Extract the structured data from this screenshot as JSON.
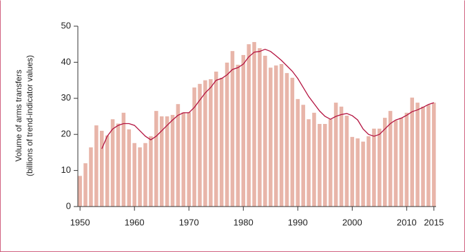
{
  "chart_data": {
    "type": "bar",
    "ylabel": [
      "Volume of arms transfers",
      "(billions of trend-indicator values)"
    ],
    "x": [
      1950,
      1951,
      1952,
      1953,
      1954,
      1955,
      1956,
      1957,
      1958,
      1959,
      1960,
      1961,
      1962,
      1963,
      1964,
      1965,
      1966,
      1967,
      1968,
      1969,
      1970,
      1971,
      1972,
      1973,
      1974,
      1975,
      1976,
      1977,
      1978,
      1979,
      1980,
      1981,
      1982,
      1983,
      1984,
      1985,
      1986,
      1987,
      1988,
      1989,
      1990,
      1991,
      1992,
      1993,
      1994,
      1995,
      1996,
      1997,
      1998,
      1999,
      2000,
      2001,
      2002,
      2003,
      2004,
      2005,
      2006,
      2007,
      2008,
      2009,
      2010,
      2011,
      2012,
      2013,
      2014,
      2015
    ],
    "series": [
      {
        "type": "bar",
        "color": "#e8b5a9",
        "values": [
          8.5,
          12,
          16.4,
          22.5,
          21,
          19.7,
          24.2,
          23,
          26,
          21.4,
          17.6,
          16.4,
          17.6,
          19.5,
          26.5,
          25,
          25,
          25.4,
          28.4,
          26.1,
          26.1,
          33,
          34,
          35,
          35.3,
          37.4,
          35.7,
          39.9,
          43.1,
          39.3,
          42,
          45,
          45.6,
          43.9,
          41.8,
          38.5,
          39.1,
          39.5,
          37,
          35.7,
          29.8,
          28.2,
          24.2,
          26,
          22.9,
          22.9,
          24.2,
          28.8,
          27.7,
          25.2,
          19.3,
          18.9,
          18,
          19.5,
          21.6,
          21.6,
          24.6,
          26.5,
          23.9,
          24.6,
          26,
          30.2,
          28.8,
          27.7,
          28.2,
          28.8
        ]
      },
      {
        "type": "line",
        "color": "#b3123f",
        "values": [
          null,
          null,
          null,
          null,
          16,
          19.5,
          21.5,
          22.5,
          23,
          23,
          22.5,
          21,
          19.5,
          18.5,
          19.5,
          21,
          22.5,
          24,
          25.3,
          26,
          26,
          27.5,
          29.5,
          31.5,
          33,
          35,
          35.5,
          36.5,
          38,
          38.5,
          39.5,
          41.5,
          42.8,
          43,
          43.6,
          43,
          41.8,
          40.5,
          39,
          37.5,
          35.5,
          33,
          30.5,
          28.5,
          26.5,
          25,
          24.2,
          25,
          25.5,
          25.8,
          25.2,
          24,
          21.5,
          20,
          19.5,
          20,
          21.5,
          23,
          24,
          24.5,
          25.3,
          26.3,
          26.8,
          27.5,
          28.3,
          28.8
        ]
      }
    ],
    "xlim": [
      1949.6,
      2015.4
    ],
    "xticks": [
      1950,
      1960,
      1970,
      1980,
      1990,
      2000,
      2010,
      2015
    ],
    "ylim": [
      0,
      50
    ],
    "yticks": [
      0,
      10,
      20,
      30,
      40,
      50
    ],
    "grid": false
  }
}
